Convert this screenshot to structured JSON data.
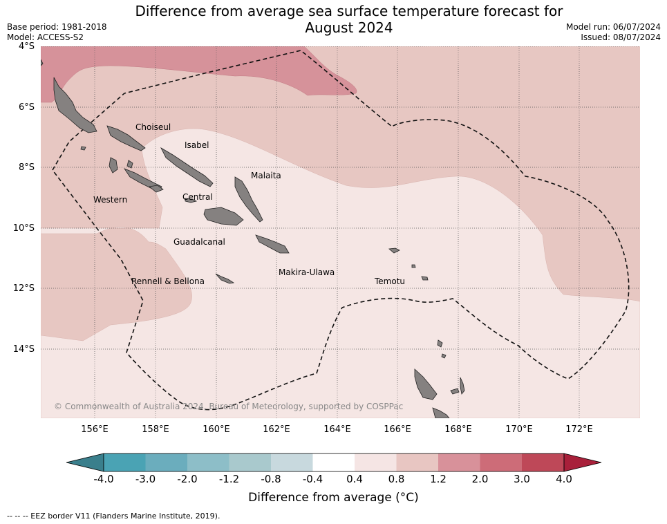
{
  "title_line1": "Difference from average sea surface temperature forecast for",
  "title_line2": "August 2024",
  "meta_left": {
    "base_period": "Base period: 1981-2018",
    "model": "Model: ACCESS-S2"
  },
  "meta_right": {
    "model_run": "Model run: 06/07/2024",
    "issued": "Issued: 08/07/2024"
  },
  "lat_labels": [
    "4°S",
    "6°S",
    "8°S",
    "10°S",
    "12°S",
    "14°S"
  ],
  "lon_labels": [
    "156°E",
    "158°E",
    "160°E",
    "162°E",
    "164°E",
    "166°E",
    "168°E",
    "170°E",
    "172°E"
  ],
  "provinces": [
    "Choiseul",
    "Isabel",
    "Malaita",
    "Western",
    "Central",
    "Guadalcanal",
    "Makira-Ulawa",
    "Temotu",
    "Rennell & Bellona"
  ],
  "copyright": "© Commonwealth of Australia 2024, Bureau of Meteorology, supported by COSPPac",
  "colorbar": {
    "title": "Difference from average (°C)",
    "tick_labels": [
      "-4.0",
      "-3.0",
      "-2.0",
      "-1.2",
      "-0.8",
      "-0.4",
      "0.4",
      "0.8",
      "1.2",
      "2.0",
      "3.0",
      "4.0"
    ],
    "colors": [
      "#4aa3b4",
      "#6badbd",
      "#8dbec8",
      "#a9c9cd",
      "#c8d9de",
      "#ffffff",
      "#f5e5e4",
      "#e8c6c2",
      "#d8919a",
      "#cd6c78",
      "#be4858"
    ],
    "extend_low_color": "#3a7f8c",
    "extend_high_color": "#a8203a"
  },
  "footnote": "--  --  -- EEZ border V11 (Flanders Marine Institute, 2019).",
  "colors": {
    "ocean_low": "#f5e6e4",
    "ocean_mid": "#e6c6c1",
    "ocean_high": "#d6929a",
    "land": "#858180"
  }
}
